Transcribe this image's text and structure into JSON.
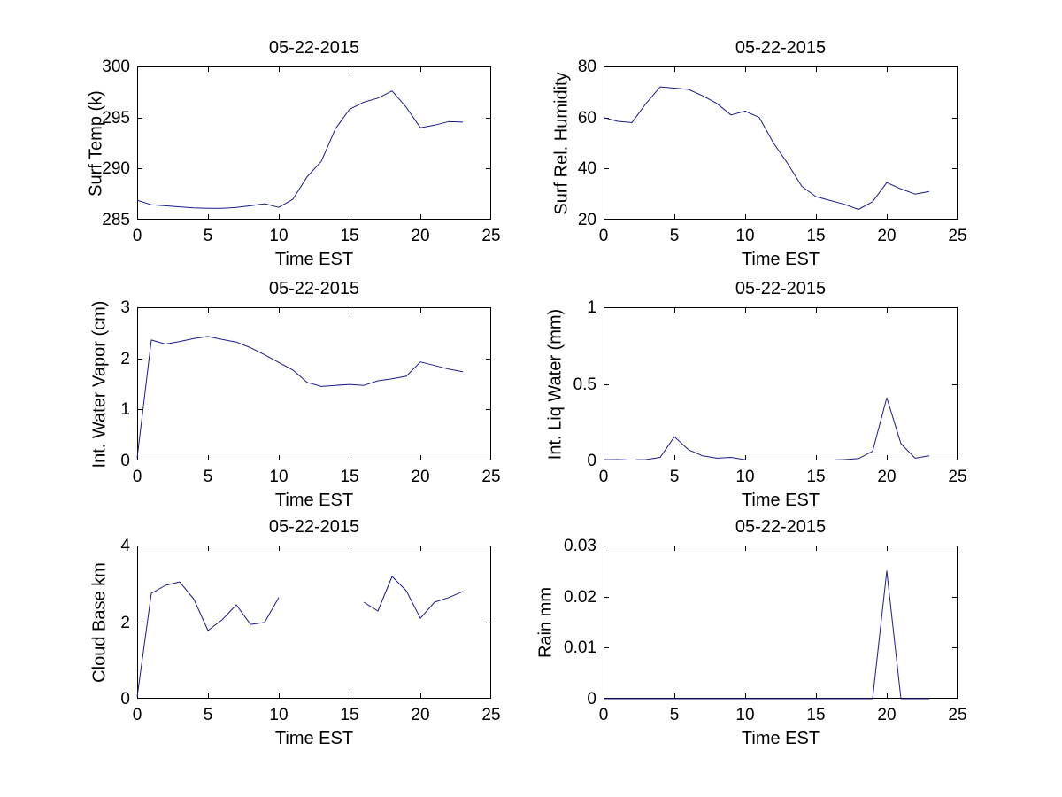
{
  "figure": {
    "background": "#ffffff",
    "axis_color": "#000000",
    "line_color": "#1A1A8C"
  },
  "chart_data": [
    {
      "type": "line",
      "title": "05-22-2015",
      "xlabel": "Time EST",
      "ylabel": "Surf Temp (k)",
      "xlim": [
        0,
        25
      ],
      "ylim": [
        285,
        300
      ],
      "xticks": [
        0,
        5,
        10,
        15,
        20,
        25
      ],
      "yticks": [
        285,
        290,
        295,
        300
      ],
      "grid": false,
      "legend": null,
      "segments": [
        [
          [
            0,
            286.9
          ],
          [
            1,
            286.45
          ],
          [
            2,
            286.35
          ],
          [
            3,
            286.25
          ],
          [
            4,
            286.15
          ],
          [
            5,
            286.1
          ],
          [
            6,
            286.1
          ],
          [
            7,
            286.2
          ],
          [
            8,
            286.35
          ],
          [
            9,
            286.55
          ],
          [
            10,
            286.2
          ],
          [
            11,
            287.0
          ],
          [
            12,
            289.2
          ],
          [
            13,
            290.7
          ],
          [
            14,
            293.9
          ],
          [
            15,
            295.8
          ],
          [
            16,
            296.5
          ],
          [
            17,
            296.9
          ],
          [
            18,
            297.6
          ],
          [
            19,
            296.0
          ],
          [
            20,
            294.0
          ],
          [
            21,
            294.25
          ],
          [
            22,
            294.6
          ],
          [
            23,
            294.55
          ]
        ]
      ]
    },
    {
      "type": "line",
      "title": "05-22-2015",
      "xlabel": "Time EST",
      "ylabel": "Surf Rel. Humidity",
      "xlim": [
        0,
        25
      ],
      "ylim": [
        20,
        80
      ],
      "xticks": [
        0,
        5,
        10,
        15,
        20,
        25
      ],
      "yticks": [
        20,
        40,
        60,
        80
      ],
      "grid": false,
      "legend": null,
      "segments": [
        [
          [
            0,
            60
          ],
          [
            1,
            58.5
          ],
          [
            2,
            58
          ],
          [
            3,
            65.5
          ],
          [
            4,
            72
          ],
          [
            5,
            71.5
          ],
          [
            6,
            71
          ],
          [
            7,
            68.5
          ],
          [
            8,
            65.5
          ],
          [
            9,
            61
          ],
          [
            10,
            62.5
          ],
          [
            11,
            60
          ],
          [
            12,
            50
          ],
          [
            13,
            42
          ],
          [
            14,
            33
          ],
          [
            15,
            29
          ],
          [
            16,
            27.5
          ],
          [
            17,
            26
          ],
          [
            18,
            24
          ],
          [
            19,
            27
          ],
          [
            20,
            34.5
          ],
          [
            21,
            32
          ],
          [
            22,
            30
          ],
          [
            23,
            31
          ]
        ]
      ]
    },
    {
      "type": "line",
      "title": "05-22-2015",
      "xlabel": "Time EST",
      "ylabel": "Int. Water Vapor (cm)",
      "xlim": [
        0,
        25
      ],
      "ylim": [
        0,
        3
      ],
      "xticks": [
        0,
        5,
        10,
        15,
        20,
        25
      ],
      "yticks": [
        0,
        1,
        2,
        3
      ],
      "grid": false,
      "legend": null,
      "segments": [
        [
          [
            0,
            0.05
          ],
          [
            1,
            2.36
          ],
          [
            2,
            2.28
          ],
          [
            3,
            2.33
          ],
          [
            4,
            2.39
          ],
          [
            5,
            2.43
          ],
          [
            6,
            2.37
          ],
          [
            7,
            2.32
          ],
          [
            8,
            2.21
          ],
          [
            9,
            2.07
          ],
          [
            10,
            1.92
          ],
          [
            11,
            1.77
          ],
          [
            12,
            1.53
          ],
          [
            13,
            1.45
          ],
          [
            14,
            1.47
          ],
          [
            15,
            1.49
          ],
          [
            16,
            1.47
          ],
          [
            17,
            1.56
          ],
          [
            18,
            1.6
          ],
          [
            19,
            1.65
          ],
          [
            20,
            1.93
          ],
          [
            21,
            1.86
          ],
          [
            22,
            1.79
          ],
          [
            23,
            1.74
          ]
        ]
      ]
    },
    {
      "type": "line",
      "title": "05-22-2015",
      "xlabel": "Time EST",
      "ylabel": "Int. Liq Water (mm)",
      "xlim": [
        0,
        25
      ],
      "ylim": [
        0,
        1
      ],
      "xticks": [
        0,
        5,
        10,
        15,
        20,
        25
      ],
      "yticks": [
        0,
        0.5,
        1
      ],
      "grid": false,
      "legend": null,
      "segments": [
        [
          [
            0,
            0.005
          ],
          [
            1,
            0.006
          ],
          [
            1.6,
            0.004
          ]
        ],
        [
          [
            2.3,
            0.005
          ],
          [
            3,
            0.006
          ],
          [
            4,
            0.02
          ],
          [
            5,
            0.155
          ],
          [
            6,
            0.07
          ],
          [
            7,
            0.03
          ],
          [
            8,
            0.015
          ],
          [
            9,
            0.02
          ],
          [
            10,
            0.005
          ]
        ],
        [
          [
            16.4,
            0.004
          ],
          [
            17,
            0.006
          ],
          [
            18,
            0.012
          ],
          [
            19,
            0.06
          ],
          [
            20,
            0.41
          ],
          [
            21,
            0.11
          ],
          [
            22,
            0.015
          ],
          [
            23,
            0.03
          ]
        ]
      ]
    },
    {
      "type": "line",
      "title": "05-22-2015",
      "xlabel": "Time EST",
      "ylabel": "Cloud Base km",
      "xlim": [
        0,
        25
      ],
      "ylim": [
        0,
        4
      ],
      "xticks": [
        0,
        5,
        10,
        15,
        20,
        25
      ],
      "yticks": [
        0,
        2,
        4
      ],
      "grid": false,
      "legend": null,
      "segments": [
        [
          [
            0,
            0.05
          ],
          [
            1,
            2.75
          ],
          [
            2,
            2.96
          ],
          [
            3,
            3.05
          ],
          [
            4,
            2.6
          ],
          [
            5,
            1.78
          ],
          [
            6,
            2.06
          ],
          [
            7,
            2.45
          ],
          [
            8,
            1.94
          ],
          [
            9,
            1.99
          ],
          [
            10,
            2.64
          ]
        ],
        [
          [
            16,
            2.52
          ],
          [
            17,
            2.29
          ],
          [
            18,
            3.19
          ],
          [
            19,
            2.82
          ],
          [
            20,
            2.1
          ],
          [
            21,
            2.52
          ],
          [
            22,
            2.64
          ],
          [
            23,
            2.8
          ]
        ]
      ]
    },
    {
      "type": "line",
      "title": "05-22-2015",
      "xlabel": "Time EST",
      "ylabel": "Rain mm",
      "xlim": [
        0,
        25
      ],
      "ylim": [
        0,
        0.03
      ],
      "xticks": [
        0,
        5,
        10,
        15,
        20,
        25
      ],
      "yticks": [
        0,
        0.01,
        0.02,
        0.03
      ],
      "grid": false,
      "legend": null,
      "segments": [
        [
          [
            0,
            0
          ],
          [
            1,
            0
          ],
          [
            2,
            0
          ],
          [
            3,
            0
          ],
          [
            4,
            0
          ],
          [
            5,
            0
          ],
          [
            6,
            0
          ],
          [
            7,
            0
          ],
          [
            8,
            0
          ],
          [
            9,
            0
          ],
          [
            10,
            0
          ],
          [
            11,
            0
          ],
          [
            12,
            0
          ],
          [
            13,
            0
          ],
          [
            14,
            0
          ],
          [
            15,
            0
          ],
          [
            16,
            0
          ],
          [
            17,
            0
          ],
          [
            18,
            0
          ],
          [
            19,
            0
          ],
          [
            20,
            0.025
          ],
          [
            21,
            0
          ],
          [
            22,
            0
          ],
          [
            23,
            0
          ]
        ]
      ]
    }
  ]
}
